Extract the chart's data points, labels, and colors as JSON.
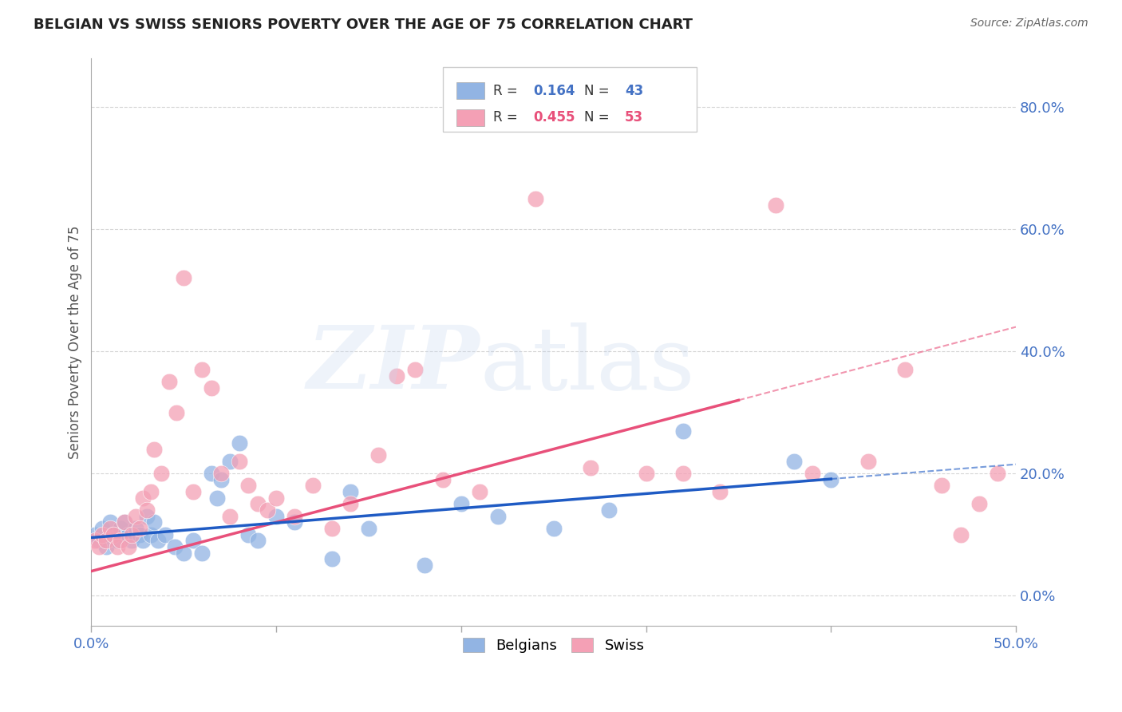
{
  "title": "BELGIAN VS SWISS SENIORS POVERTY OVER THE AGE OF 75 CORRELATION CHART",
  "source": "Source: ZipAtlas.com",
  "ylabel": "Seniors Poverty Over the Age of 75",
  "xlim": [
    0.0,
    0.5
  ],
  "ylim": [
    -0.05,
    0.88
  ],
  "yticks": [
    0.0,
    0.2,
    0.4,
    0.6,
    0.8
  ],
  "xticks": [
    0.0,
    0.5
  ],
  "xticks_minor": [
    0.1,
    0.2,
    0.3,
    0.4
  ],
  "belgian_color": "#92b4e3",
  "swiss_color": "#f4a0b5",
  "belgian_line_color": "#1f5bc4",
  "swiss_line_color": "#e8507a",
  "belgian_R": 0.164,
  "belgian_N": 43,
  "swiss_R": 0.455,
  "swiss_N": 53,
  "background_color": "#ffffff",
  "belgians_x": [
    0.002,
    0.004,
    0.006,
    0.008,
    0.01,
    0.012,
    0.014,
    0.016,
    0.018,
    0.02,
    0.022,
    0.024,
    0.026,
    0.028,
    0.03,
    0.032,
    0.034,
    0.036,
    0.04,
    0.045,
    0.05,
    0.055,
    0.06,
    0.065,
    0.068,
    0.07,
    0.075,
    0.08,
    0.085,
    0.09,
    0.1,
    0.11,
    0.13,
    0.14,
    0.15,
    0.18,
    0.2,
    0.22,
    0.25,
    0.28,
    0.32,
    0.38,
    0.4
  ],
  "belgians_y": [
    0.1,
    0.09,
    0.11,
    0.08,
    0.12,
    0.1,
    0.09,
    0.11,
    0.12,
    0.1,
    0.09,
    0.11,
    0.1,
    0.09,
    0.13,
    0.1,
    0.12,
    0.09,
    0.1,
    0.08,
    0.07,
    0.09,
    0.07,
    0.2,
    0.16,
    0.19,
    0.22,
    0.25,
    0.1,
    0.09,
    0.13,
    0.12,
    0.06,
    0.17,
    0.11,
    0.05,
    0.15,
    0.13,
    0.11,
    0.14,
    0.27,
    0.22,
    0.19
  ],
  "swiss_x": [
    0.002,
    0.004,
    0.006,
    0.008,
    0.01,
    0.012,
    0.014,
    0.016,
    0.018,
    0.02,
    0.022,
    0.024,
    0.026,
    0.028,
    0.03,
    0.032,
    0.034,
    0.038,
    0.042,
    0.046,
    0.05,
    0.055,
    0.06,
    0.065,
    0.07,
    0.075,
    0.08,
    0.085,
    0.09,
    0.095,
    0.1,
    0.11,
    0.12,
    0.13,
    0.14,
    0.155,
    0.165,
    0.175,
    0.19,
    0.21,
    0.24,
    0.27,
    0.3,
    0.32,
    0.34,
    0.37,
    0.39,
    0.42,
    0.44,
    0.46,
    0.47,
    0.48,
    0.49
  ],
  "swiss_y": [
    0.09,
    0.08,
    0.1,
    0.09,
    0.11,
    0.1,
    0.08,
    0.09,
    0.12,
    0.08,
    0.1,
    0.13,
    0.11,
    0.16,
    0.14,
    0.17,
    0.24,
    0.2,
    0.35,
    0.3,
    0.52,
    0.17,
    0.37,
    0.34,
    0.2,
    0.13,
    0.22,
    0.18,
    0.15,
    0.14,
    0.16,
    0.13,
    0.18,
    0.11,
    0.15,
    0.23,
    0.36,
    0.37,
    0.19,
    0.17,
    0.65,
    0.21,
    0.2,
    0.2,
    0.17,
    0.64,
    0.2,
    0.22,
    0.37,
    0.18,
    0.1,
    0.15,
    0.2
  ],
  "bel_intercept": 0.095,
  "bel_slope": 0.24,
  "swi_intercept": 0.04,
  "swi_slope": 0.8
}
